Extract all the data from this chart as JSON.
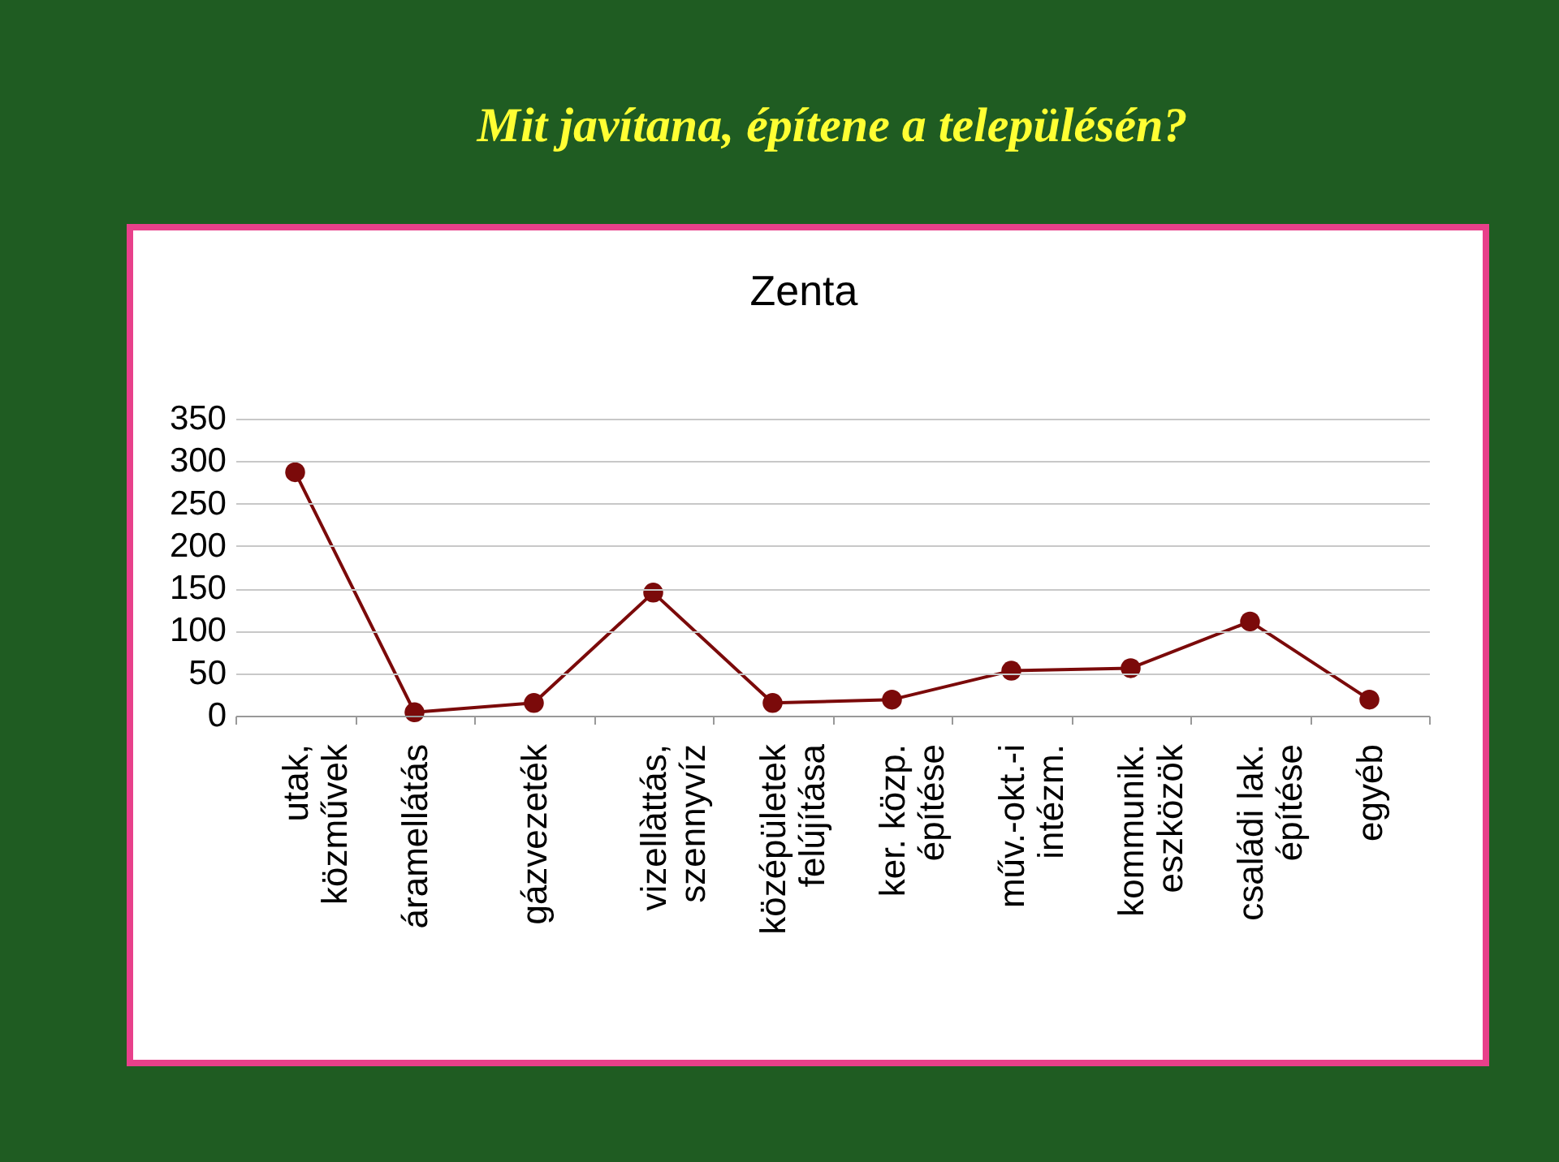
{
  "chart_data": {
    "type": "line",
    "title": "Mit javítana, építene a településén?",
    "subtitle": "Zenta",
    "categories": [
      "utak,\nközművek",
      "áramellátás",
      "gázvezeték",
      "vizellàttás,\nszennyvíz",
      "középületek\nfelújítása",
      "ker. közp.\népítése",
      "műv.-okt.-i\nintézm.",
      "kommunik.\neszközök",
      "családi lak.\népítése",
      "egyéb"
    ],
    "series": [
      {
        "color": "#7b0a0a",
        "values": [
          287,
          4,
          15,
          145,
          15,
          19,
          53,
          56,
          111,
          19
        ]
      }
    ],
    "ylim": [
      0,
      350
    ],
    "yticks": [
      0,
      50,
      100,
      150,
      200,
      250,
      300,
      350
    ],
    "grid": "y",
    "legend": false,
    "marker": "circle",
    "line_style": "solid"
  }
}
